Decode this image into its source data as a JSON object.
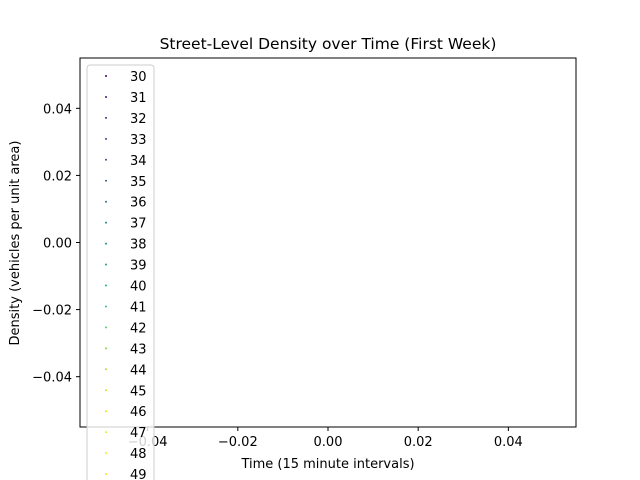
{
  "chart_data": {
    "type": "scatter",
    "title": "Street-Level Density over Time (First Week)",
    "xlabel": "Time (15 minute intervals)",
    "ylabel": "Density (vehicles per unit area)",
    "xlim": [
      -0.055,
      0.055
    ],
    "ylim": [
      -0.055,
      0.055
    ],
    "xticks": [
      -0.04,
      -0.02,
      0.0,
      0.02,
      0.04
    ],
    "xtick_labels": [
      "−0.04",
      "−0.02",
      "0.00",
      "0.02",
      "0.04"
    ],
    "yticks": [
      -0.04,
      -0.02,
      0.0,
      0.02,
      0.04
    ],
    "ytick_labels": [
      "−0.04",
      "−0.02",
      "0.00",
      "0.02",
      "0.04"
    ],
    "grid": false,
    "legend_placement": "upper-left",
    "series": [
      {
        "name": "30",
        "color": "#440154",
        "x": [],
        "y": []
      },
      {
        "name": "31",
        "color": "#48186a",
        "x": [],
        "y": []
      },
      {
        "name": "32",
        "color": "#472d7b",
        "x": [],
        "y": []
      },
      {
        "name": "33",
        "color": "#424086",
        "x": [],
        "y": []
      },
      {
        "name": "34",
        "color": "#3b528b",
        "x": [],
        "y": []
      },
      {
        "name": "35",
        "color": "#33638d",
        "x": [],
        "y": []
      },
      {
        "name": "36",
        "color": "#2c728e",
        "x": [],
        "y": []
      },
      {
        "name": "37",
        "color": "#26828e",
        "x": [],
        "y": []
      },
      {
        "name": "38",
        "color": "#21918c",
        "x": [],
        "y": []
      },
      {
        "name": "39",
        "color": "#1fa088",
        "x": [],
        "y": []
      },
      {
        "name": "40",
        "color": "#28ae80",
        "x": [],
        "y": []
      },
      {
        "name": "41",
        "color": "#3fbc73",
        "x": [],
        "y": []
      },
      {
        "name": "42",
        "color": "#5ec962",
        "x": [],
        "y": []
      },
      {
        "name": "43",
        "color": "#84d44b",
        "x": [],
        "y": []
      },
      {
        "name": "44",
        "color": "#addc30",
        "x": [],
        "y": []
      },
      {
        "name": "45",
        "color": "#d8e219",
        "x": [],
        "y": []
      },
      {
        "name": "46",
        "color": "#e4e419",
        "x": [],
        "y": []
      },
      {
        "name": "47",
        "color": "#ecea1a",
        "x": [],
        "y": []
      },
      {
        "name": "48",
        "color": "#f2ec1e",
        "x": [],
        "y": []
      },
      {
        "name": "49",
        "color": "#fde725",
        "x": [],
        "y": []
      }
    ]
  }
}
